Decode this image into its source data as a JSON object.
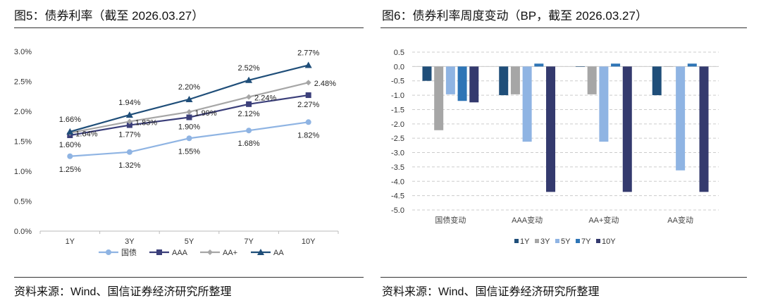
{
  "left": {
    "title": "图5：债券利率（截至 2026.03.27）",
    "source": "资料来源：Wind、国信证券经济研究所整理"
  },
  "right": {
    "title": "图6：债券利率周度变动（BP，截至 2026.03.27）",
    "source": "资料来源：Wind、国信证券经济研究所整理"
  },
  "chart_data": [
    {
      "type": "line",
      "categories": [
        "1Y",
        "3Y",
        "5Y",
        "7Y",
        "10Y"
      ],
      "ylim": [
        0,
        3.0
      ],
      "yticks": [
        "0.0%",
        "0.5%",
        "1.0%",
        "1.5%",
        "2.0%",
        "2.5%",
        "3.0%"
      ],
      "grid": false,
      "legend": "bottom",
      "series": [
        {
          "name": "国债",
          "values": [
            1.25,
            1.32,
            1.55,
            1.68,
            1.82
          ],
          "labels": [
            "1.25%",
            "1.32%",
            "1.55%",
            "1.68%",
            "1.82%"
          ],
          "color": "#8fb4e3",
          "marker": "circle"
        },
        {
          "name": "AAA",
          "values": [
            1.6,
            1.77,
            1.9,
            2.12,
            2.27
          ],
          "labels": [
            "1.60%",
            "1.77%",
            "1.90%",
            "2.12%",
            "2.27%"
          ],
          "color": "#3b3f7a",
          "marker": "square"
        },
        {
          "name": "AA+",
          "values": [
            1.64,
            1.83,
            1.99,
            2.24,
            2.48
          ],
          "labels": [
            "1.64%",
            "1.83%",
            "1.99%",
            "2.24%",
            "2.48%"
          ],
          "color": "#a6a6a6",
          "marker": "diamond"
        },
        {
          "name": "AA",
          "values": [
            1.66,
            1.94,
            2.2,
            2.52,
            2.77
          ],
          "labels": [
            "1.66%",
            "1.94%",
            "2.20%",
            "2.52%",
            "2.77%"
          ],
          "color": "#1f4e79",
          "marker": "triangle"
        }
      ]
    },
    {
      "type": "bar",
      "categories": [
        "国债变动",
        "AAA变动",
        "AA+变动",
        "AA变动"
      ],
      "ylim": [
        -5.0,
        0.5
      ],
      "yticks": [
        "0.5",
        "0.0",
        "-0.5",
        "-1.0",
        "-1.5",
        "-2.0",
        "-2.5",
        "-3.0",
        "-3.5",
        "-4.0",
        "-4.5",
        "-5.0"
      ],
      "grid": true,
      "legend": "bottom",
      "series": [
        {
          "name": "1Y",
          "values": [
            -0.5,
            -1.0,
            0,
            -1.0
          ],
          "color": "#1f4e79"
        },
        {
          "name": "3Y",
          "values": [
            -2.22,
            -0.97,
            -0.97,
            0
          ],
          "color": "#a6a6a6"
        },
        {
          "name": "5Y",
          "values": [
            -0.97,
            -2.62,
            -2.62,
            -3.62
          ],
          "color": "#8fb4e3"
        },
        {
          "name": "7Y",
          "values": [
            -1.2,
            0.1,
            0.1,
            0.1
          ],
          "color": "#2e75b6"
        },
        {
          "name": "10Y",
          "values": [
            -1.25,
            -4.37,
            -4.37,
            -4.37
          ],
          "color": "#343a6e"
        }
      ]
    }
  ]
}
